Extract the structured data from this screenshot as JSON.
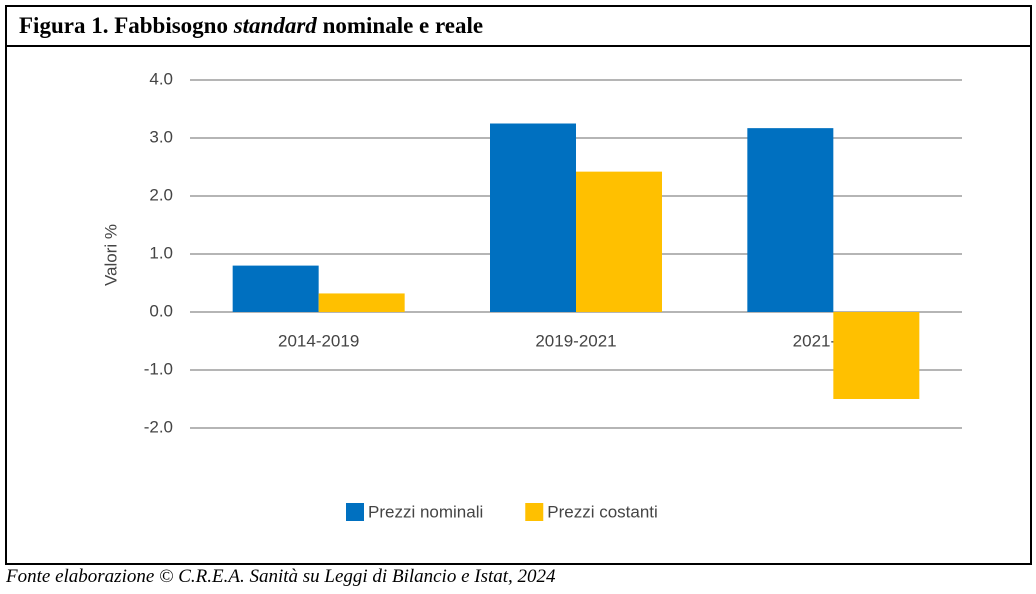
{
  "chart_data": {
    "type": "bar",
    "title": [
      "Figura 1. Fabbisogno",
      "standard",
      "nominale e reale"
    ],
    "y_label": "Valori %",
    "categories": [
      "2014-2019",
      "2019-2021",
      "2021-2024"
    ],
    "series": [
      {
        "name": "Prezzi nominali",
        "color": "#0070c0",
        "values": [
          0.8,
          3.25,
          3.17
        ]
      },
      {
        "name": "Prezzi costanti",
        "color": "#ffc000",
        "values": [
          0.32,
          2.42,
          -1.5
        ]
      }
    ],
    "ylim": [
      -2,
      4
    ],
    "yticks": [
      {
        "value": -2,
        "label": "-2.0"
      },
      {
        "value": -1,
        "label": "-1.0"
      },
      {
        "value": 0,
        "label": "0.0"
      },
      {
        "value": 1,
        "label": "1.0"
      },
      {
        "value": 2,
        "label": "2.0"
      },
      {
        "value": 3,
        "label": "3.0"
      },
      {
        "value": 4,
        "label": "4.0"
      }
    ],
    "grid": true,
    "legend": "bottom"
  },
  "source": "Fonte elaborazione © C.R.E.A. Sanità su Leggi di Bilancio e Istat, 2024"
}
